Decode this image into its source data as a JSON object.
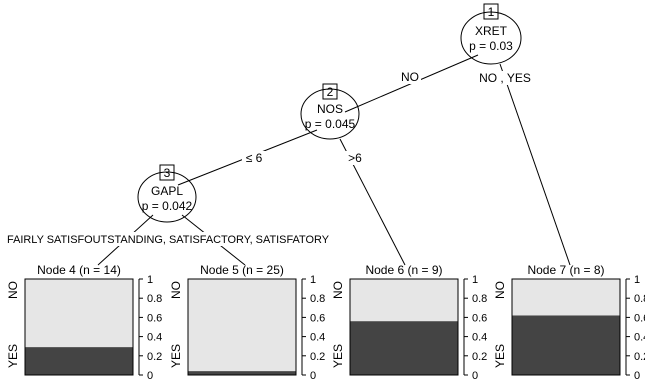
{
  "inner_nodes": [
    {
      "id": "1",
      "variable": "XRET",
      "p_value": "p = 0.03"
    },
    {
      "id": "2",
      "variable": "NOS",
      "p_value": "p = 0.045"
    },
    {
      "id": "3",
      "variable": "GAPL",
      "p_value": "p = 0.042"
    }
  ],
  "edge_labels": {
    "node1_left": "NO",
    "node1_right": "NO , YES",
    "node2_left": "≤ 6",
    "node2_right": ">6",
    "node3_split": "FAIRLY SATISFOUTSTANDING, SATISFACTORY, SATISFATORY"
  },
  "terminal_nodes": [
    {
      "title": "Node 4 (n = 14)",
      "yes_fraction": 0.29
    },
    {
      "title": "Node 5 (n = 25)",
      "yes_fraction": 0.04
    },
    {
      "title": "Node 6 (n = 9)",
      "yes_fraction": 0.56
    },
    {
      "title": "Node 7 (n = 8)",
      "yes_fraction": 0.62
    }
  ],
  "bar_axis": {
    "category_top": "NO",
    "category_bottom": "YES",
    "ticks": [
      "0",
      "0.2",
      "0.4",
      "0.6",
      "0.8",
      "1"
    ],
    "tick_values": [
      0,
      0.2,
      0.4,
      0.6,
      0.8,
      1
    ]
  },
  "colors": {
    "no_fill": "#e6e6e6",
    "yes_fill": "#444444",
    "line": "#000000"
  }
}
